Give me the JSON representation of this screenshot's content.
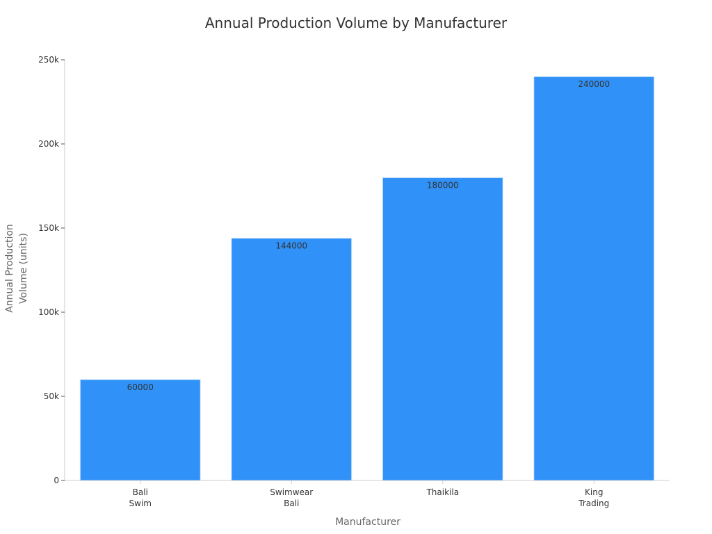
{
  "chart_data": {
    "type": "bar",
    "title": "Annual Production Volume by Manufacturer",
    "xlabel": "Manufacturer",
    "ylabel": [
      "Annual Production",
      "Volume (units)"
    ],
    "categories": [
      [
        "Bali",
        "Swim"
      ],
      [
        "Swimwear",
        "Bali"
      ],
      [
        "Thaikila"
      ],
      [
        "King",
        "Trading"
      ]
    ],
    "values": [
      60000,
      144000,
      180000,
      240000
    ],
    "value_labels": [
      "60000",
      "144000",
      "180000",
      "240000"
    ],
    "yticks": [
      0,
      50000,
      100000,
      150000,
      200000,
      250000
    ],
    "ytick_labels": [
      "0",
      "50k",
      "100k",
      "150k",
      "200k",
      "250k"
    ],
    "ylim": [
      0,
      250000
    ],
    "grid": false,
    "legend": "none",
    "colors": {
      "bar": "#3092f8",
      "axis": "#cccccc",
      "title": "#333333",
      "axis_label": "#666666"
    }
  }
}
